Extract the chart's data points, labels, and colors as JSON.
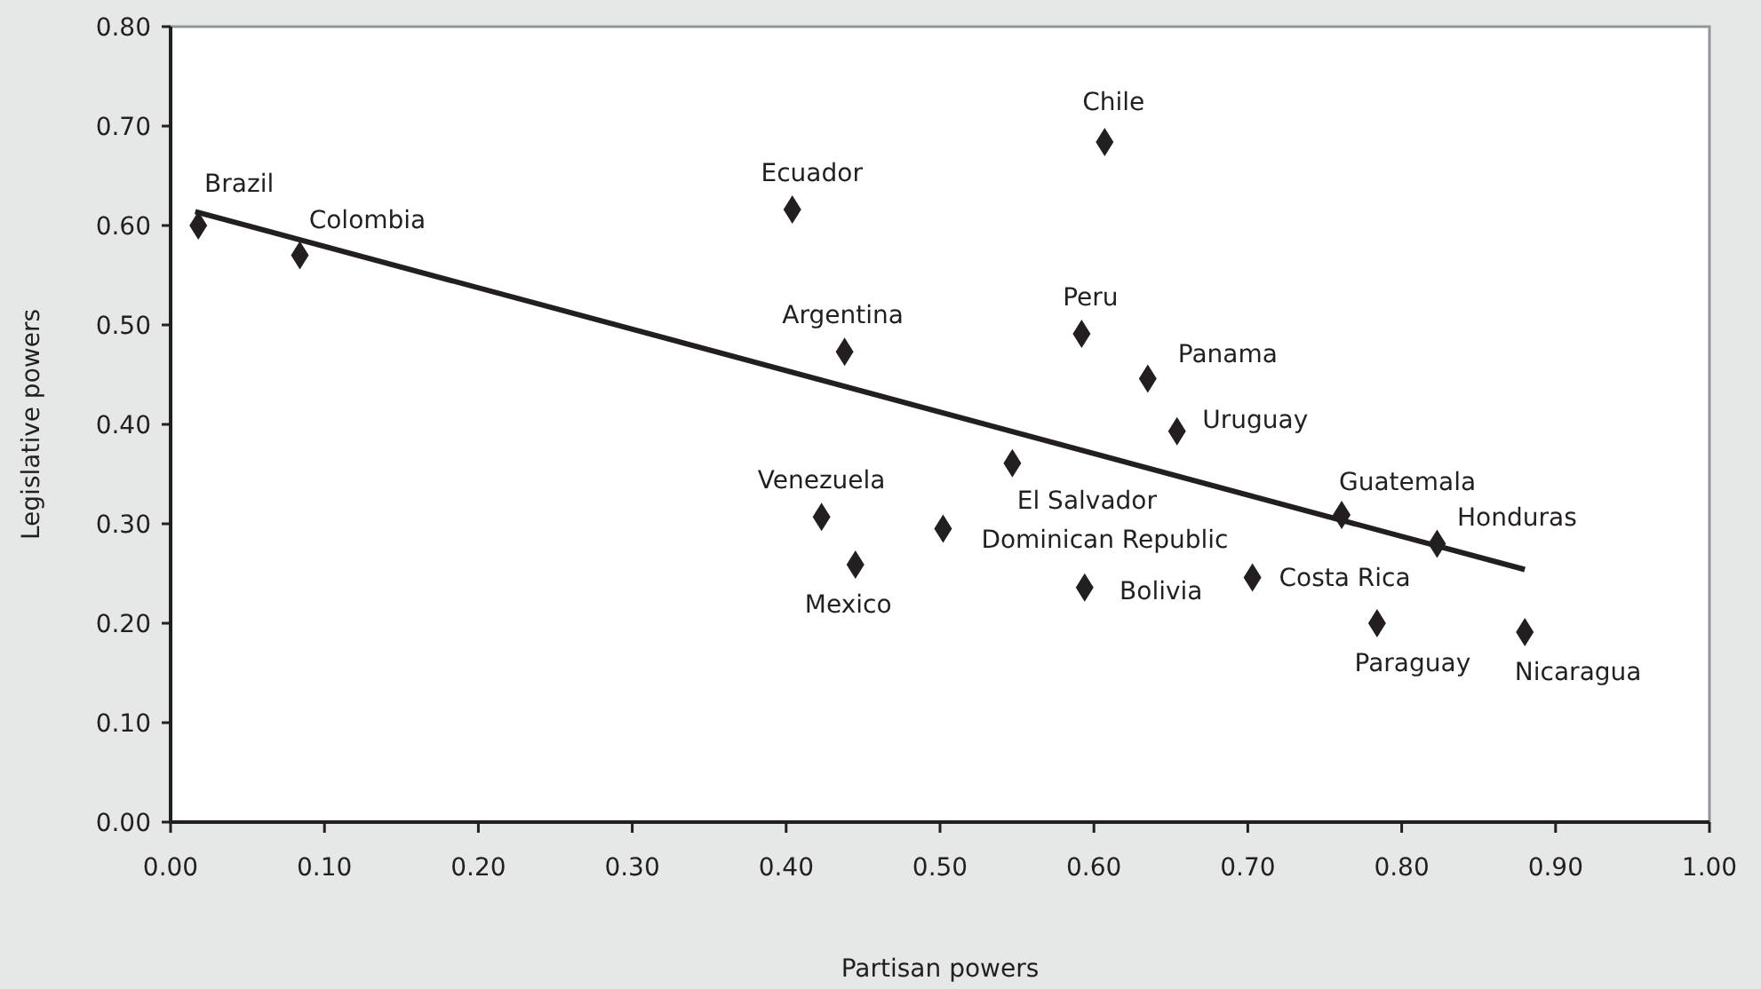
{
  "chart_data": {
    "type": "scatter",
    "xlabel": "Partisan powers",
    "ylabel": "Legislative powers",
    "marker": "diamond",
    "grid": false,
    "legend": false,
    "xlim": [
      0,
      1
    ],
    "ylim": [
      0,
      0.8
    ],
    "xticks": [
      {
        "value": 0,
        "label": "0.00"
      },
      {
        "value": 0.1,
        "label": "0.10"
      },
      {
        "value": 0.2,
        "label": "0.20"
      },
      {
        "value": 0.3,
        "label": "0.30"
      },
      {
        "value": 0.4,
        "label": "0.40"
      },
      {
        "value": 0.5,
        "label": "0.50"
      },
      {
        "value": 0.6,
        "label": "0.60"
      },
      {
        "value": 0.7,
        "label": "0.70"
      },
      {
        "value": 0.8,
        "label": "0.80"
      },
      {
        "value": 0.9,
        "label": "0.90"
      },
      {
        "value": 1,
        "label": "1.00"
      }
    ],
    "yticks": [
      {
        "value": 0,
        "label": "0.00"
      },
      {
        "value": 0.1,
        "label": "0.10"
      },
      {
        "value": 0.2,
        "label": "0.20"
      },
      {
        "value": 0.3,
        "label": "0.30"
      },
      {
        "value": 0.4,
        "label": "0.40"
      },
      {
        "value": 0.5,
        "label": "0.50"
      },
      {
        "value": 0.6,
        "label": "0.60"
      },
      {
        "value": 0.7,
        "label": "0.70"
      },
      {
        "value": 0.8,
        "label": "0.80"
      }
    ],
    "series": [
      {
        "color": "#231f20",
        "x": [
          0.018,
          0.084,
          0.404,
          0.438,
          0.423,
          0.445,
          0.607,
          0.592,
          0.635,
          0.654,
          0.547,
          0.502,
          0.594,
          0.703,
          0.761,
          0.823,
          0.784,
          0.88
        ],
        "values": [
          0.6,
          0.57,
          0.616,
          0.473,
          0.307,
          0.259,
          0.684,
          0.491,
          0.446,
          0.393,
          0.361,
          0.295,
          0.236,
          0.246,
          0.309,
          0.28,
          0.2,
          0.191
        ]
      },
      {
        "type": "line",
        "color": "#231f20",
        "marker": "none",
        "x": [
          0.016,
          0.88
        ],
        "values": [
          0.614,
          0.254
        ]
      }
    ],
    "annotations": [
      {
        "text": "Brazil",
        "x": 0.018,
        "y": 0.6
      },
      {
        "text": "Colombia",
        "x": 0.084,
        "y": 0.57
      },
      {
        "text": "Ecuador",
        "x": 0.404,
        "y": 0.616
      },
      {
        "text": "Argentina",
        "x": 0.438,
        "y": 0.473
      },
      {
        "text": "Venezuela",
        "x": 0.423,
        "y": 0.307
      },
      {
        "text": "Mexico",
        "x": 0.445,
        "y": 0.259
      },
      {
        "text": "Chile",
        "x": 0.607,
        "y": 0.684
      },
      {
        "text": "Peru",
        "x": 0.592,
        "y": 0.491
      },
      {
        "text": "Panama",
        "x": 0.635,
        "y": 0.446
      },
      {
        "text": "Uruguay",
        "x": 0.654,
        "y": 0.393
      },
      {
        "text": "El Salvador",
        "x": 0.547,
        "y": 0.361
      },
      {
        "text": "Dominican Republic",
        "x": 0.502,
        "y": 0.295
      },
      {
        "text": "Bolivia",
        "x": 0.594,
        "y": 0.236
      },
      {
        "text": "Costa Rica",
        "x": 0.703,
        "y": 0.246
      },
      {
        "text": "Guatemala",
        "x": 0.761,
        "y": 0.309
      },
      {
        "text": "Honduras",
        "x": 0.823,
        "y": 0.28
      },
      {
        "text": "Paraguay",
        "x": 0.784,
        "y": 0.2
      },
      {
        "text": "Nicaragua",
        "x": 0.88,
        "y": 0.191
      }
    ]
  }
}
